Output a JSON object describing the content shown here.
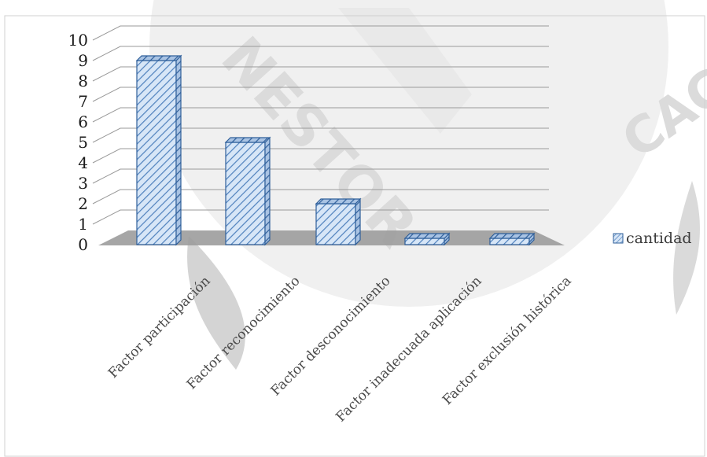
{
  "chart_data": {
    "type": "bar",
    "categories": [
      "Factor participación",
      "Factor reconocimiento",
      "Factor desconocimiento",
      "Factor inadecuada aplicación",
      "Factor exclusión histórica"
    ],
    "series": [
      {
        "name": "cantidad",
        "values": [
          9,
          5,
          2,
          0,
          0
        ]
      }
    ],
    "ylim": [
      0,
      10
    ],
    "yticks": [
      "0",
      "1",
      "2",
      "3",
      "4",
      "5",
      "6",
      "7",
      "8",
      "9",
      "10"
    ],
    "title": "",
    "xlabel": "",
    "ylabel": "",
    "grid": true,
    "legend_position": "right",
    "style": "3d-column-hatched",
    "colors": {
      "bar_face": "#d7e6f7",
      "bar_hatch": "#4f81bd",
      "bar_edge": "#2f5f9a",
      "grid": "#9a9a9a",
      "floor": "#9c9c9c"
    }
  },
  "watermark": {
    "texts": [
      "NESTOR",
      "CACE"
    ]
  }
}
